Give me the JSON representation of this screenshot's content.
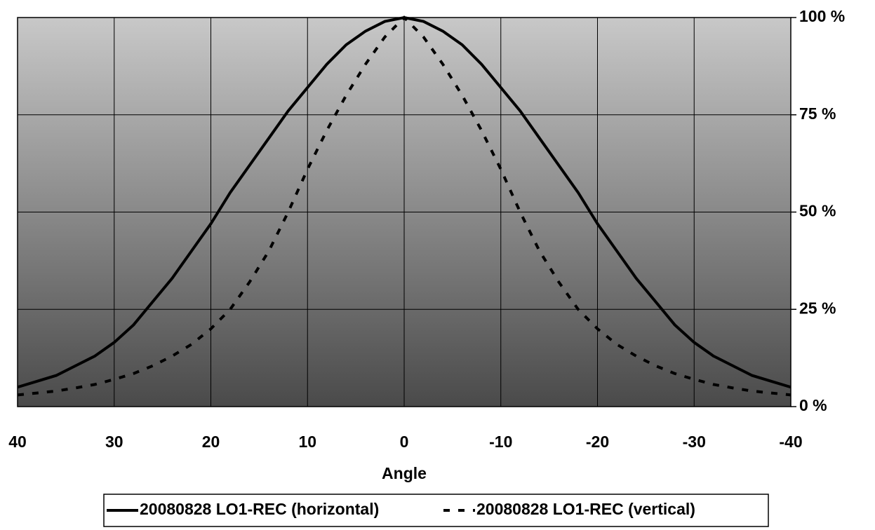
{
  "chart_data": {
    "type": "line",
    "x_label": "Angle",
    "x": [
      40,
      38,
      36,
      34,
      32,
      30,
      28,
      26,
      24,
      22,
      20,
      18,
      16,
      14,
      12,
      10,
      8,
      6,
      4,
      2,
      0,
      -2,
      -4,
      -6,
      -8,
      -10,
      -12,
      -14,
      -16,
      -18,
      -20,
      -22,
      -24,
      -26,
      -28,
      -30,
      -32,
      -34,
      -36,
      -38,
      -40
    ],
    "series": [
      {
        "name": "20080828 LO1-REC (horizontal)",
        "color": "#000000",
        "dash": false,
        "values": [
          5,
          6.5,
          8,
          10.5,
          13,
          16.5,
          21,
          27,
          33,
          40,
          47,
          55,
          62,
          69,
          76,
          82,
          88,
          93,
          96.5,
          99,
          100,
          99,
          96.5,
          93,
          88,
          82,
          76,
          69,
          62,
          55,
          47,
          40,
          33,
          27,
          21,
          16.5,
          13,
          10.5,
          8,
          6.5,
          5
        ]
      },
      {
        "name": "20080828 LO1-REC (vertical)",
        "color": "#000000",
        "dash": true,
        "values": [
          3,
          3.5,
          4,
          4.8,
          5.7,
          7,
          8.5,
          10.5,
          13,
          16,
          20,
          25,
          32,
          40,
          50,
          61,
          71,
          80,
          88,
          95,
          100,
          95,
          88,
          80,
          71,
          61,
          50,
          40,
          32,
          25,
          20,
          16,
          13,
          10.5,
          8.5,
          7,
          5.7,
          4.8,
          4,
          3.5,
          3
        ]
      }
    ],
    "xlim": [
      40,
      -40
    ],
    "xticks": [
      40,
      30,
      20,
      10,
      0,
      -10,
      -20,
      -30,
      -40
    ],
    "ylim": [
      0,
      100
    ],
    "yticks": [
      {
        "value": 0,
        "label": "0 %"
      },
      {
        "value": 25,
        "label": "25 %"
      },
      {
        "value": 50,
        "label": "50 %"
      },
      {
        "value": 75,
        "label": "75 %"
      },
      {
        "value": 100,
        "label": "100 %"
      }
    ],
    "grid": true,
    "legend": "bottom"
  }
}
